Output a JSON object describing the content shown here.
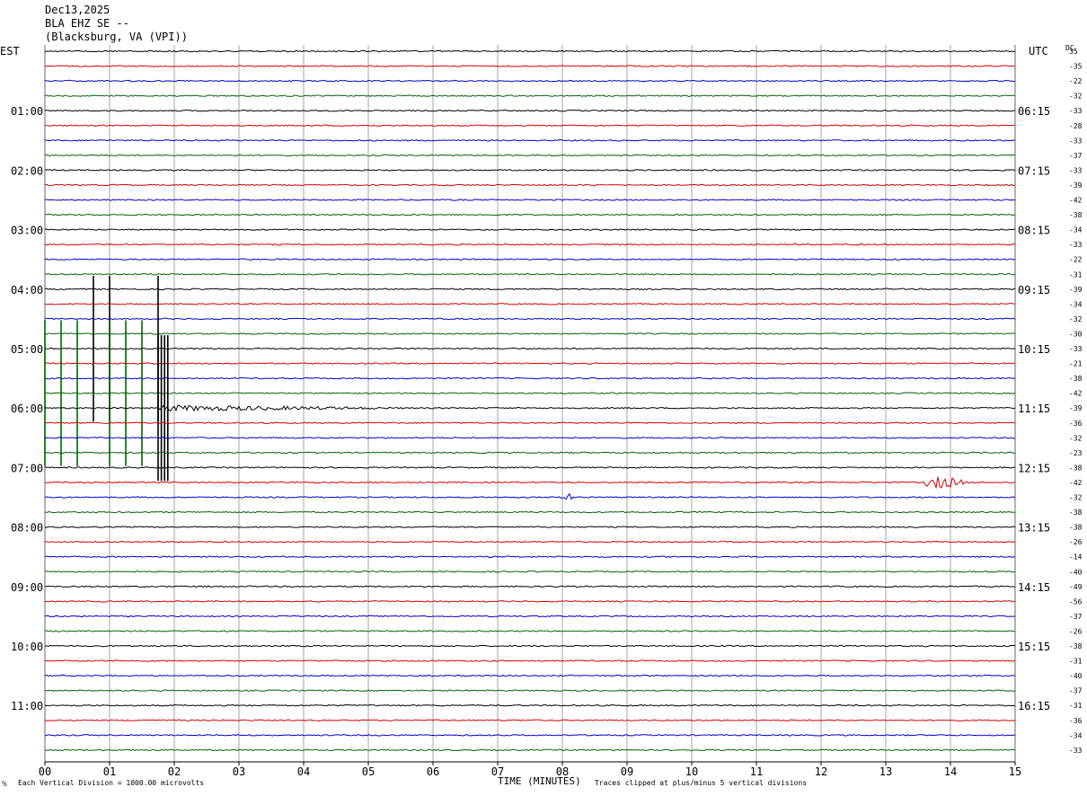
{
  "header": {
    "date": "Dec13,2025",
    "station": "BLA EHZ SE --",
    "location": "(Blacksburg, VA (VPI))"
  },
  "left_zone": "EST",
  "right_zone": "UTC",
  "dc_label": "DC",
  "footer": {
    "mark": "⅍",
    "scale": "Each Vertical Division = 1000.00 microvolts",
    "xlabel": "TIME (MINUTES)",
    "clip": "Traces clipped at plus/minus 5 vertical divisions"
  },
  "colors": {
    "trace_cycle": [
      "#000000",
      "#d40000",
      "#0000c8",
      "#006400"
    ],
    "grid": "#808080",
    "label": "#000000"
  },
  "chart_data": {
    "type": "line",
    "title": "BLA EHZ SE --",
    "xlabel": "TIME (MINUTES)",
    "xlim": [
      0,
      15
    ],
    "x_ticks": [
      "00",
      "01",
      "02",
      "03",
      "04",
      "05",
      "06",
      "07",
      "08",
      "09",
      "10",
      "11",
      "12",
      "13",
      "14",
      "15"
    ],
    "trace_count": 48,
    "minutes_per_trace": 15,
    "left_time_labels": [
      {
        "trace": 4,
        "label": "01:00"
      },
      {
        "trace": 8,
        "label": "02:00"
      },
      {
        "trace": 12,
        "label": "03:00"
      },
      {
        "trace": 16,
        "label": "04:00"
      },
      {
        "trace": 20,
        "label": "05:00"
      },
      {
        "trace": 24,
        "label": "06:00"
      },
      {
        "trace": 28,
        "label": "07:00"
      },
      {
        "trace": 32,
        "label": "08:00"
      },
      {
        "trace": 36,
        "label": "09:00"
      },
      {
        "trace": 40,
        "label": "10:00"
      },
      {
        "trace": 44,
        "label": "11:00"
      }
    ],
    "right_time_labels": [
      {
        "trace": 4,
        "label": "06:15"
      },
      {
        "trace": 8,
        "label": "07:15"
      },
      {
        "trace": 12,
        "label": "08:15"
      },
      {
        "trace": 16,
        "label": "09:15"
      },
      {
        "trace": 20,
        "label": "10:15"
      },
      {
        "trace": 24,
        "label": "11:15"
      },
      {
        "trace": 28,
        "label": "12:15"
      },
      {
        "trace": 32,
        "label": "13:15"
      },
      {
        "trace": 36,
        "label": "14:15"
      },
      {
        "trace": 40,
        "label": "15:15"
      },
      {
        "trace": 44,
        "label": "16:15"
      }
    ],
    "dc_offsets": [
      "35",
      "-35",
      "-22",
      "-32",
      "-33",
      "-28",
      "-33",
      "-37",
      "-33",
      "-39",
      "-42",
      "-38",
      "-34",
      "-33",
      "-22",
      "-31",
      "-39",
      "-34",
      "-32",
      "-30",
      "-33",
      "-21",
      "-38",
      "-42",
      "-39",
      "-36",
      "-32",
      "-23",
      "-38",
      "-42",
      "-32",
      "-38",
      "-38",
      "-26",
      "-14",
      "-40",
      "-49",
      "-56",
      "-37",
      "-26",
      "-38",
      "-31",
      "-40",
      "-37",
      "-31",
      "-36",
      "-34",
      "-33"
    ],
    "events": [
      {
        "trace": 20,
        "minutes": [
          0.75,
          1.0,
          1.75
        ],
        "kind": "spike",
        "amplitude_div": 5
      },
      {
        "trace": 23,
        "minutes": [
          0.0,
          0.25,
          0.5,
          1.0,
          1.25,
          1.5
        ],
        "kind": "spike",
        "amplitude_div": 5
      },
      {
        "trace": 24,
        "minutes": [
          1.75,
          1.8,
          1.85,
          1.9
        ],
        "kind": "spike",
        "amplitude_div": 5
      },
      {
        "trace": 24,
        "start": 1.77,
        "end": 6.3,
        "kind": "coda",
        "amplitude_div": 0.6
      },
      {
        "trace": 29,
        "start": 13.6,
        "end": 15.0,
        "kind": "burst",
        "amplitude_div": 1.1
      },
      {
        "trace": 30,
        "start": 8.0,
        "end": 8.35,
        "kind": "burst",
        "amplitude_div": 1.0
      }
    ],
    "grid": true
  }
}
